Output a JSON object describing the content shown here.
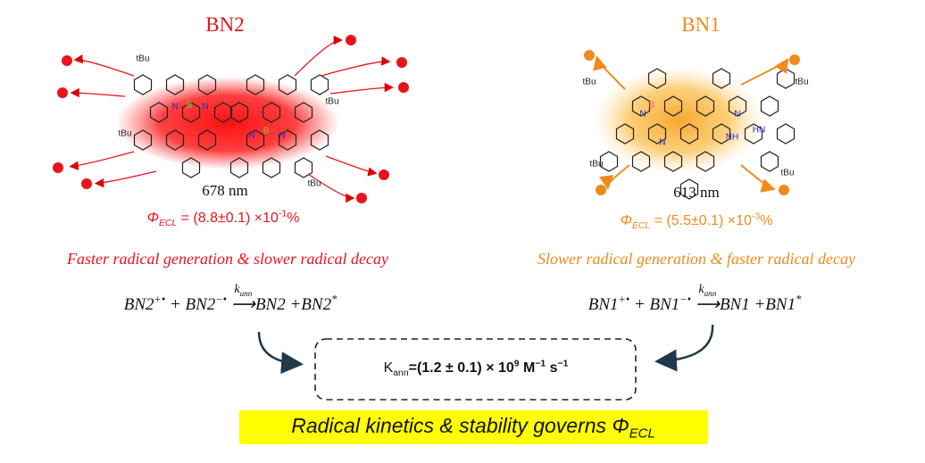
{
  "left": {
    "title": "BN2",
    "wavelength": "678 nm",
    "phi": {
      "symbol": "Φ",
      "sub": "ECL",
      "text": " = (8.8±0.1) ×10",
      "sup": "-1",
      "unit": "%"
    },
    "caption": "Faster radical generation & slower radical decay",
    "equation": {
      "a": "BN2",
      "a_sup": "+•",
      "plus": " + ",
      "b": "BN2",
      "b_sup": "−•",
      "k": "k",
      "k_sub": "ann",
      "arrow": "⟶",
      "c": "BN2 +BN2",
      "star": "*"
    },
    "molecule_labels": [
      "tBu",
      "tBu",
      "tBu",
      "tBu",
      "N",
      "B",
      "N",
      "N",
      "B",
      "N"
    ]
  },
  "right": {
    "title": "BN1",
    "wavelength": "613 nm",
    "phi": {
      "symbol": "Φ",
      "sub": "ECL",
      "text": " = (5.5±0.1) ×10",
      "sup": "-3",
      "unit": "%"
    },
    "caption": "Slower radical generation & faster radical decay",
    "equation": {
      "a": "BN1",
      "a_sup": "+•",
      "plus": " + ",
      "b": "BN1",
      "b_sup": "−•",
      "k": "k",
      "k_sub": "ann",
      "arrow": "⟶",
      "c": "BN1 +BN1",
      "star": "*"
    },
    "molecule_labels": [
      "tBu",
      "tBu",
      "tBu",
      "tBu",
      "N",
      "B",
      "N",
      "N",
      "HN",
      "NH"
    ]
  },
  "box": {
    "k": "K",
    "sub": "ann",
    "text": "=(1.2 ± 0.1) × 10",
    "sup": "9",
    "unit1": " M",
    "sup2": "−1",
    "unit2": " s",
    "sup3": "−1"
  },
  "conclusion": {
    "text": "Radical kinetics & stability governs ",
    "symbol": "Φ",
    "sub": "ECL"
  }
}
